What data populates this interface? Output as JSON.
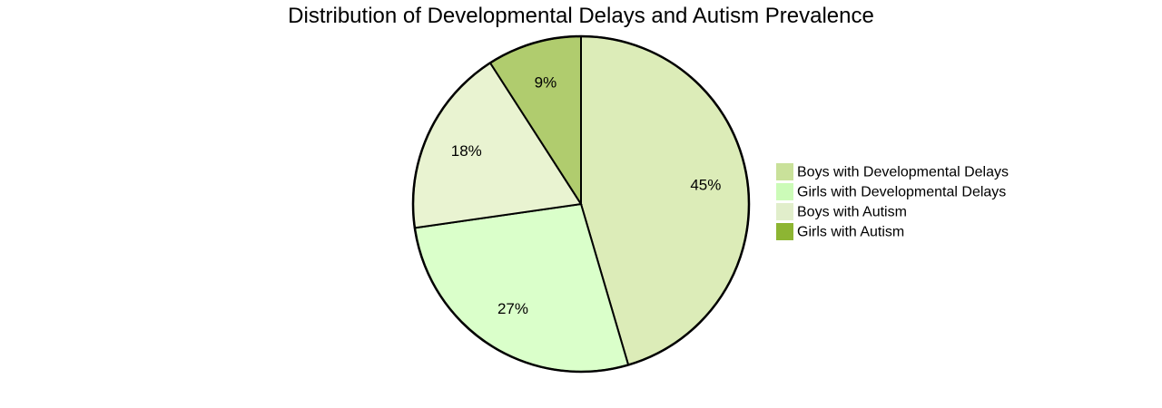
{
  "chart_data": {
    "type": "pie",
    "title": "Distribution of Developmental Delays and Autism Prevalence",
    "slices": [
      {
        "label": "Boys with Developmental Delays",
        "value": 45,
        "label_text": "45%",
        "color": "#dcecb8",
        "legend_color": "#c9e19a"
      },
      {
        "label": "Girls with Developmental Delays",
        "value": 27,
        "label_text": "27%",
        "color": "#daffca",
        "legend_color": "#ccfbb8"
      },
      {
        "label": "Boys with Autism",
        "value": 18,
        "label_text": "18%",
        "color": "#e9f3d1",
        "legend_color": "#e1eecb"
      },
      {
        "label": "Girls with Autism",
        "value": 9,
        "label_text": "9%",
        "color": "#b0cc6e",
        "legend_color": "#8db533"
      }
    ],
    "legend_position": "right"
  }
}
